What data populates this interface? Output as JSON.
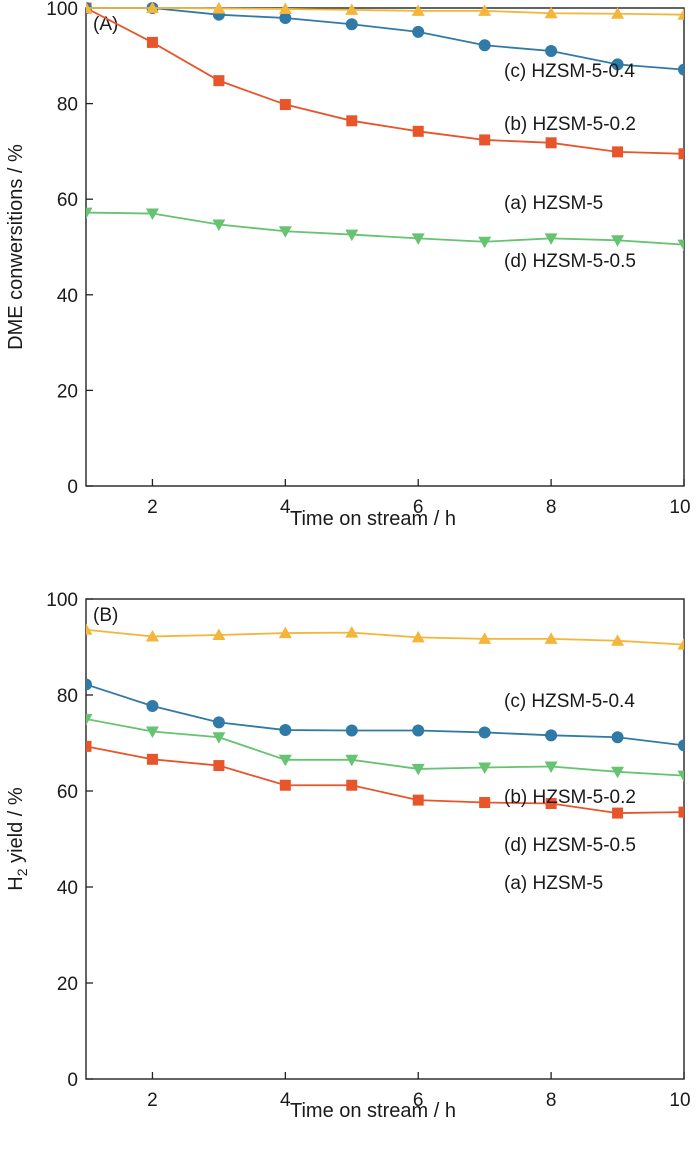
{
  "chart_data": [
    {
      "type": "line",
      "panel_label": "(A)",
      "xlabel": "Time on stream / h",
      "ylabel": "DME conwersitions / %",
      "xlim": [
        1,
        10
      ],
      "ylim": [
        0,
        100
      ],
      "xticks": [
        2,
        4,
        6,
        8,
        10
      ],
      "yticks": [
        0,
        20,
        40,
        60,
        80,
        100
      ],
      "grid": false,
      "x": [
        1,
        2,
        3,
        4,
        5,
        6,
        7,
        8,
        9,
        10
      ],
      "series": [
        {
          "name": "(a) HZSM-5",
          "marker": "square",
          "color": "#e8552a",
          "values": [
            100,
            92.8,
            84.8,
            79.8,
            76.4,
            74.2,
            72.4,
            71.8,
            69.9,
            69.5
          ]
        },
        {
          "name": "(b) HZSM-5-0.2",
          "marker": "circle",
          "color": "#2f7aa6",
          "values": [
            100,
            100,
            98.6,
            97.9,
            96.6,
            95.0,
            92.2,
            91.0,
            88.2,
            87.1
          ]
        },
        {
          "name": "(c) HZSM-5-0.4",
          "marker": "triangle-up",
          "color": "#f4b63a",
          "values": [
            100,
            100,
            99.9,
            99.8,
            99.6,
            99.4,
            99.4,
            98.9,
            98.8,
            98.6
          ]
        },
        {
          "name": "(d) HZSM-5-0.5",
          "marker": "triangle-down",
          "color": "#66c371",
          "values": [
            57.2,
            57.0,
            54.7,
            53.3,
            52.6,
            51.8,
            51.1,
            51.8,
            51.4,
            50.5
          ]
        }
      ]
    },
    {
      "type": "line",
      "panel_label": "(B)",
      "xlabel": "Time on stream / h",
      "ylabel_main": "H",
      "ylabel_sub": "2",
      "ylabel_rest": " yield / %",
      "xlim": [
        1,
        10
      ],
      "ylim": [
        0,
        100
      ],
      "xticks": [
        2,
        4,
        6,
        8,
        10
      ],
      "yticks": [
        0,
        20,
        40,
        60,
        80,
        100
      ],
      "grid": false,
      "x": [
        1,
        2,
        3,
        4,
        5,
        6,
        7,
        8,
        9,
        10
      ],
      "series": [
        {
          "name": "(a) HZSM-5",
          "marker": "square",
          "color": "#e8552a",
          "values": [
            69.3,
            66.6,
            65.3,
            61.2,
            61.2,
            58.1,
            57.6,
            57.4,
            55.4,
            55.6
          ]
        },
        {
          "name": "(b) HZSM-5-0.2",
          "marker": "circle",
          "color": "#2f7aa6",
          "values": [
            82.2,
            77.7,
            74.3,
            72.7,
            72.6,
            72.6,
            72.2,
            71.6,
            71.2,
            69.5
          ]
        },
        {
          "name": "(c) HZSM-5-0.4",
          "marker": "triangle-up",
          "color": "#f4b63a",
          "values": [
            93.6,
            92.2,
            92.5,
            92.9,
            93.0,
            92.0,
            91.7,
            91.7,
            91.3,
            90.5
          ]
        },
        {
          "name": "(d) HZSM-5-0.5",
          "marker": "triangle-down",
          "color": "#66c371",
          "values": [
            75.0,
            72.4,
            71.2,
            66.5,
            66.5,
            64.6,
            64.9,
            65.1,
            64.0,
            63.2
          ]
        }
      ]
    }
  ]
}
